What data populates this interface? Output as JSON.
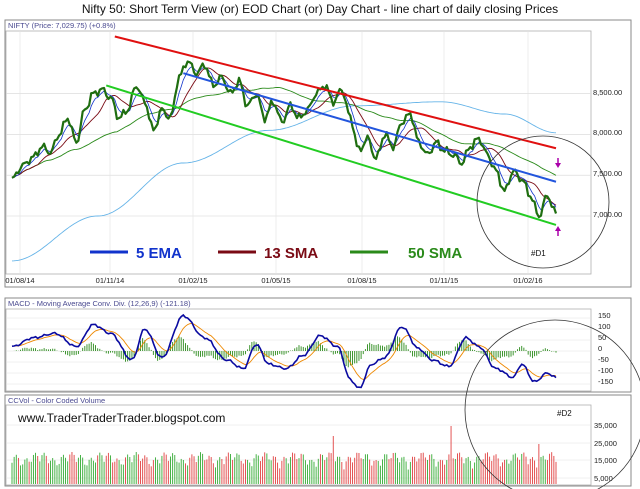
{
  "title": "Nifty 50: Short Term View (or) EOD Chart (or) Day Chart - line chart of daily closing Prices",
  "website": "www.TraderTraderTrader.blogspot.com",
  "colors": {
    "price": "#1f6e10",
    "ema5": "#1133cc",
    "sma13": "#7a0a14",
    "sma50": "#2a8a1a",
    "sma200": "#66b4e8",
    "resistance": "#e01010",
    "support": "#22cc22",
    "trend_mid": "#2255dd",
    "arrow": "#aa00aa",
    "macd": "#0a0aa0",
    "signal": "#ee8800",
    "hist": "#2a8a1a",
    "vol_up": "#33aa33",
    "vol_down": "#e04040"
  },
  "chart_data": [
    {
      "type": "line",
      "panel": "price",
      "label": "NIFTY (Price: 7,029.75) (+0.8%)",
      "x_ticks": [
        "01/08/14",
        "01/11/14",
        "01/02/15",
        "01/05/15",
        "01/08/15",
        "01/11/15",
        "01/02/16"
      ],
      "y_ticks": [
        "7,000.00",
        "7,500.00",
        "8,000.00",
        "8,500.00"
      ],
      "ylim": [
        6550,
        9150
      ],
      "series": [
        {
          "name": "5 EMA",
          "key": "ema5"
        },
        {
          "name": "13 SMA",
          "key": "sma13"
        },
        {
          "name": "50 SMA",
          "key": "sma50"
        }
      ],
      "anchors": [
        [
          0,
          7450
        ],
        [
          5,
          7620
        ],
        [
          10,
          7720
        ],
        [
          14,
          7850
        ],
        [
          18,
          7780
        ],
        [
          22,
          8000
        ],
        [
          26,
          8200
        ],
        [
          30,
          7900
        ],
        [
          34,
          8300
        ],
        [
          38,
          8500
        ],
        [
          42,
          8550
        ],
        [
          46,
          8450
        ],
        [
          50,
          8200
        ],
        [
          54,
          8300
        ],
        [
          58,
          8600
        ],
        [
          62,
          8400
        ],
        [
          66,
          8050
        ],
        [
          70,
          8300
        ],
        [
          74,
          8200
        ],
        [
          78,
          8700
        ],
        [
          82,
          8900
        ],
        [
          86,
          8750
        ],
        [
          90,
          8850
        ],
        [
          94,
          8600
        ],
        [
          98,
          8700
        ],
        [
          102,
          8500
        ],
        [
          106,
          8650
        ],
        [
          110,
          8350
        ],
        [
          114,
          8500
        ],
        [
          118,
          8200
        ],
        [
          122,
          8400
        ],
        [
          126,
          8150
        ],
        [
          130,
          8350
        ],
        [
          134,
          8200
        ],
        [
          138,
          8300
        ],
        [
          142,
          8500
        ],
        [
          146,
          8600
        ],
        [
          150,
          8400
        ],
        [
          154,
          8550
        ],
        [
          158,
          8200
        ],
        [
          162,
          7800
        ],
        [
          166,
          7950
        ],
        [
          170,
          7700
        ],
        [
          174,
          8000
        ],
        [
          178,
          7850
        ],
        [
          182,
          8150
        ],
        [
          186,
          8250
        ],
        [
          190,
          7900
        ],
        [
          194,
          7750
        ],
        [
          198,
          7900
        ],
        [
          202,
          7800
        ],
        [
          206,
          7750
        ],
        [
          210,
          7650
        ],
        [
          214,
          7850
        ],
        [
          218,
          7950
        ],
        [
          222,
          7750
        ],
        [
          226,
          7550
        ],
        [
          230,
          7300
        ],
        [
          234,
          7550
        ],
        [
          238,
          7450
        ],
        [
          242,
          7250
        ],
        [
          246,
          7000
        ],
        [
          250,
          7250
        ],
        [
          254,
          7029.75
        ]
      ],
      "sma200_anchors": [
        [
          0,
          6450
        ],
        [
          40,
          7000
        ],
        [
          80,
          7650
        ],
        [
          120,
          8050
        ],
        [
          160,
          8350
        ],
        [
          200,
          8400
        ],
        [
          230,
          8250
        ],
        [
          254,
          8020
        ]
      ],
      "trend_lines": [
        {
          "name": "resistance",
          "from": [
            48,
            9200
          ],
          "to": [
            254,
            7830
          ]
        },
        {
          "name": "trend_mid",
          "from": [
            80,
            8750
          ],
          "to": [
            254,
            7420
          ]
        },
        {
          "name": "support",
          "from": [
            44,
            8600
          ],
          "to": [
            254,
            6890
          ]
        }
      ],
      "annotations": [
        "5 EMA",
        "13 SMA",
        "50 SMA",
        "#D1"
      ]
    },
    {
      "type": "line",
      "panel": "macd",
      "label": "MACD - Moving Average Conv. Div. (12,26,9) (-121.18)",
      "y_ticks": [
        "150",
        "100",
        "50",
        "0",
        "-50",
        "-100",
        "-150"
      ],
      "ylim": [
        -175,
        175
      ],
      "macd_anchors": [
        [
          0,
          20
        ],
        [
          10,
          60
        ],
        [
          20,
          80
        ],
        [
          30,
          20
        ],
        [
          38,
          120
        ],
        [
          46,
          80
        ],
        [
          56,
          -40
        ],
        [
          62,
          100
        ],
        [
          70,
          -30
        ],
        [
          80,
          160
        ],
        [
          90,
          60
        ],
        [
          100,
          -40
        ],
        [
          108,
          -80
        ],
        [
          114,
          30
        ],
        [
          120,
          -60
        ],
        [
          128,
          -80
        ],
        [
          136,
          -20
        ],
        [
          144,
          70
        ],
        [
          152,
          20
        ],
        [
          158,
          -130
        ],
        [
          162,
          -170
        ],
        [
          168,
          -60
        ],
        [
          174,
          -30
        ],
        [
          182,
          110
        ],
        [
          190,
          10
        ],
        [
          196,
          -40
        ],
        [
          204,
          -70
        ],
        [
          212,
          60
        ],
        [
          218,
          20
        ],
        [
          226,
          -80
        ],
        [
          234,
          -120
        ],
        [
          238,
          -60
        ],
        [
          244,
          -140
        ],
        [
          250,
          -100
        ],
        [
          254,
          -121.18
        ]
      ],
      "annotations": [
        "#D2"
      ]
    },
    {
      "type": "bar",
      "panel": "volume",
      "label": "CCVol - Color Coded Volume",
      "y_ticks": [
        "35,000",
        "25,000",
        "15,000",
        "5,000"
      ],
      "ylim": [
        0,
        45000
      ]
    }
  ]
}
